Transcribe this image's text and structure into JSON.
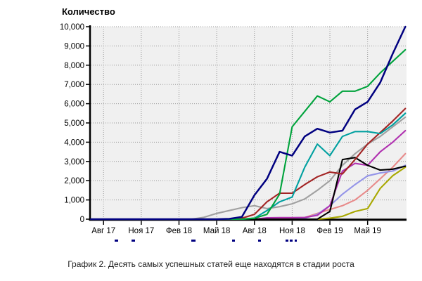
{
  "title": "Количество",
  "caption": "График 2. Десять самых успешных статей еще находятся в стадии роста",
  "colors": {
    "page_bg": "#ffffff",
    "plot_bg": "#f0f0f0",
    "grid": "#999999",
    "axis": "#000000",
    "tick_label": "#000000",
    "legend_cutoff": "#000080"
  },
  "chart_data": {
    "type": "line",
    "title": "Количество",
    "xlabel": "",
    "ylabel": "",
    "ylim": [
      0,
      10000
    ],
    "grid": "dotted-both-axes",
    "legend": "cut-off-below-x-axis",
    "y_tick_labels": [
      "0",
      "1,000",
      "2,000",
      "3,000",
      "4,000",
      "5,000",
      "6,000",
      "7,000",
      "8,000",
      "9,000",
      "10,000"
    ],
    "y_tick_values": [
      0,
      1000,
      2000,
      3000,
      4000,
      5000,
      6000,
      7000,
      8000,
      9000,
      10000
    ],
    "x_tick_labels": [
      "Авг 17",
      "Ноя 17",
      "Фев 18",
      "Май 18",
      "Авг 18",
      "Ноя 18",
      "Фев 19",
      "Май 19"
    ],
    "x_axis_note_points_are_monthly": true,
    "x_first_tick_point_index": 1,
    "x_points_per_tick_interval": 3,
    "series": [
      {
        "color_name": "gray",
        "color": "#a0a0a0",
        "values": [
          0,
          0,
          0,
          0,
          0,
          0,
          0,
          0,
          0,
          100,
          300,
          450,
          600,
          700,
          550,
          650,
          800,
          1050,
          1500,
          2000,
          2800,
          3400,
          3900,
          4300,
          4800,
          5300
        ]
      },
      {
        "color_name": "salmon",
        "color": "#e88a8a",
        "values": [
          0,
          0,
          0,
          0,
          0,
          0,
          0,
          0,
          0,
          0,
          0,
          0,
          0,
          0,
          60,
          60,
          60,
          80,
          300,
          500,
          700,
          1000,
          1500,
          2100,
          2700,
          3400
        ]
      },
      {
        "color_name": "lavender",
        "color": "#9494e8",
        "values": [
          0,
          0,
          0,
          0,
          0,
          0,
          0,
          0,
          0,
          0,
          0,
          0,
          0,
          0,
          0,
          0,
          0,
          50,
          250,
          700,
          1300,
          1800,
          2250,
          2400,
          2500,
          2800
        ]
      },
      {
        "color_name": "olive",
        "color": "#a8a800",
        "values": [
          0,
          0,
          0,
          0,
          0,
          0,
          0,
          0,
          0,
          0,
          0,
          0,
          0,
          0,
          0,
          0,
          0,
          0,
          0,
          50,
          150,
          400,
          550,
          1600,
          2260,
          2700
        ]
      },
      {
        "color_name": "magenta",
        "color": "#b030b0",
        "values": [
          0,
          0,
          0,
          0,
          0,
          0,
          0,
          0,
          0,
          0,
          0,
          0,
          0,
          0,
          70,
          80,
          80,
          90,
          200,
          700,
          2500,
          2900,
          2800,
          3500,
          4000,
          4600
        ]
      },
      {
        "color_name": "black",
        "color": "#000000",
        "values": [
          0,
          0,
          0,
          0,
          0,
          0,
          0,
          0,
          0,
          0,
          0,
          0,
          0,
          0,
          0,
          0,
          0,
          0,
          0,
          400,
          3100,
          3200,
          2800,
          2550,
          2600,
          2750
        ]
      },
      {
        "color_name": "dark-red",
        "color": "#a32424",
        "values": [
          0,
          0,
          0,
          0,
          0,
          0,
          0,
          0,
          0,
          0,
          0,
          0,
          50,
          250,
          900,
          1350,
          1350,
          1800,
          2200,
          2450,
          2350,
          3100,
          3900,
          4500,
          5100,
          5750
        ]
      },
      {
        "color_name": "teal",
        "color": "#00a0a0",
        "values": [
          0,
          0,
          0,
          0,
          0,
          0,
          0,
          0,
          0,
          0,
          0,
          0,
          0,
          50,
          450,
          900,
          1150,
          2700,
          3900,
          3300,
          4300,
          4550,
          4550,
          4450,
          4900,
          5500
        ]
      },
      {
        "color_name": "green",
        "color": "#00a33c",
        "values": [
          0,
          0,
          0,
          0,
          0,
          0,
          0,
          0,
          0,
          0,
          0,
          0,
          0,
          50,
          250,
          1300,
          4800,
          5600,
          6400,
          6100,
          6650,
          6650,
          6900,
          7600,
          8200,
          8800
        ]
      },
      {
        "color_name": "navy",
        "color": "#000080",
        "values": [
          0,
          0,
          0,
          0,
          0,
          0,
          0,
          0,
          0,
          0,
          0,
          20,
          120,
          1250,
          2100,
          3500,
          3300,
          4300,
          4700,
          4500,
          4600,
          5700,
          6100,
          7100,
          8600,
          10000
        ]
      }
    ]
  }
}
